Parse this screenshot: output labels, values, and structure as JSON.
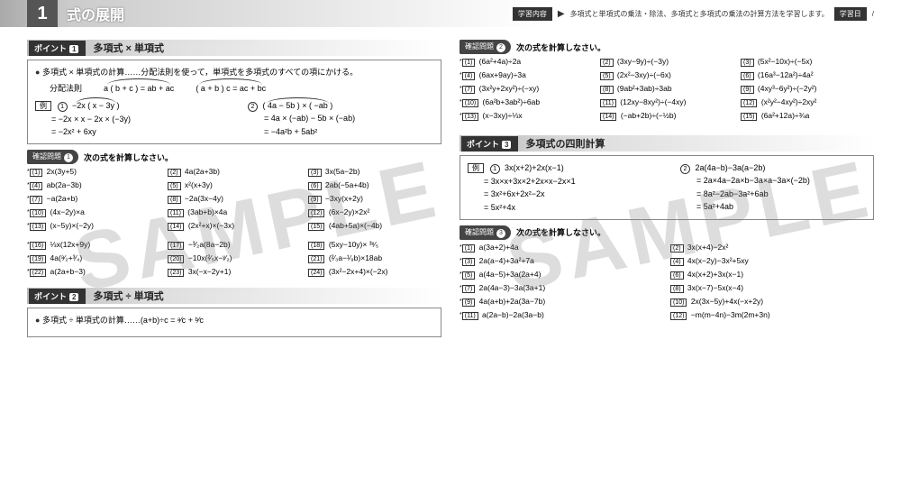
{
  "header": {
    "num": "1",
    "title": "式の展開",
    "tag1": "学習内容",
    "desc": "多項式と単項式の乗法・除法、多項式と多項式の乗法の計算方法を学習します。",
    "tag2": "学習日",
    "slash": "/"
  },
  "watermark": "SAMPLE",
  "pt1": {
    "badge": "ポイント",
    "num": "1",
    "title": "多項式 × 単項式",
    "lead": "多項式 × 単項式の計算……分配法則を使って，単項式を多項式のすべての項にかける。",
    "dist_lbl": "分配法則",
    "dist1": "a ( b + c ) = ab + ac",
    "dist2": "( a + b ) c = ac + bc",
    "ex_lbl": "例",
    "c1": "①",
    "l1a": "−2x ( x − 3y )",
    "l1b": "= −2x × x − 2x × (−3y)",
    "l1c": "= −2x² + 6xy",
    "c2": "②",
    "l2a": "( 4a − 5b ) × ( −ab )",
    "l2b": "= 4a × (−ab) − 5b × (−ab)",
    "l2c": "= −4a²b + 5ab²"
  },
  "cf1": {
    "badge": "確認問題",
    "num": "1",
    "title": "次の式を計算しなさい。",
    "items": [
      {
        "n": "(1)",
        "t": "2x(3y+5)",
        "s": 1
      },
      {
        "n": "(2)",
        "t": "4a(2a+3b)"
      },
      {
        "n": "(3)",
        "t": "3x(5a−2b)"
      },
      {
        "n": "(4)",
        "t": "ab(2a−3b)",
        "s": 1
      },
      {
        "n": "(5)",
        "t": "x²(x+3y)"
      },
      {
        "n": "(6)",
        "t": "2ab(−5a+4b)"
      },
      {
        "n": "(7)",
        "t": "−a(2a+b)",
        "s": 1
      },
      {
        "n": "(8)",
        "t": "−2a(3x−4y)"
      },
      {
        "n": "(9)",
        "t": "−3xy(x+2y)"
      },
      {
        "n": "(10)",
        "t": "(4x−2y)×a",
        "s": 1
      },
      {
        "n": "(11)",
        "t": "(3ab+b)×4a"
      },
      {
        "n": "(12)",
        "t": "(6x−2y)×2x²"
      },
      {
        "n": "(13)",
        "t": "(x−5y)×(−2y)",
        "s": 1
      },
      {
        "n": "(14)",
        "t": "(2x²+x)×(−3x)"
      },
      {
        "n": "(15)",
        "t": "(4ab+5a)×(−4b)"
      }
    ]
  },
  "cf1b": [
    {
      "n": "(16)",
      "t": "⅓x(12x+9y)",
      "s": 1
    },
    {
      "n": "(17)",
      "t": "−³⁄₂a(8a−2b)"
    },
    {
      "n": "(18)",
      "t": "(5xy−10y)× ³ˣ⁄₅"
    },
    {
      "n": "(19)",
      "t": "4a(ᵃ⁄₂+³⁄₄)",
      "s": 1
    },
    {
      "n": "(20)",
      "t": "−10x(²⁄₅x−ʸ⁄₂)"
    },
    {
      "n": "(21)",
      "t": "(²⁄₃a−¹⁄₉b)×18ab"
    },
    {
      "n": "(22)",
      "t": "a(2a+b−3)",
      "s": 1
    },
    {
      "n": "(23)",
      "t": "3x(−x−2y+1)"
    },
    {
      "n": "(24)",
      "t": "(3x²−2x+4)×(−2x)"
    }
  ],
  "pt2": {
    "badge": "ポイント",
    "num": "2",
    "title": "多項式 ÷ 単項式",
    "lead": "多項式 ÷ 単項式の計算……(a+b)÷c = ᵃ⁄c + ᵇ⁄c"
  },
  "cf2": {
    "badge": "確認問題",
    "num": "2",
    "title": "次の式を計算しなさい。",
    "items": [
      {
        "n": "(1)",
        "t": "(6a²+4a)÷2a",
        "s": 1
      },
      {
        "n": "(2)",
        "t": "(3xy−9y)÷(−3y)"
      },
      {
        "n": "(3)",
        "t": "(5x²−10x)÷(−5x)"
      },
      {
        "n": "(4)",
        "t": "(6ax+9ay)÷3a",
        "s": 1
      },
      {
        "n": "(5)",
        "t": "(2x²−3xy)÷(−6x)"
      },
      {
        "n": "(6)",
        "t": "(16a³−12a²)÷4a²"
      },
      {
        "n": "(7)",
        "t": "(3x²y+2xy²)÷(−xy)",
        "s": 1
      },
      {
        "n": "(8)",
        "t": "(9ab²+3ab)÷3ab"
      },
      {
        "n": "(9)",
        "t": "(4xy³−6y²)÷(−2y²)"
      },
      {
        "n": "(10)",
        "t": "(6a²b+3ab²)÷6ab",
        "s": 1
      },
      {
        "n": "(11)",
        "t": "(12xy−8xy²)÷(−4xy)"
      },
      {
        "n": "(12)",
        "t": "(x²y²−4xy²)÷2xy²"
      },
      {
        "n": "(13)",
        "t": "(x−3xy)÷⅓x",
        "s": 1
      },
      {
        "n": "(14)",
        "t": "(−ab+2b)÷(−½b)"
      },
      {
        "n": "(15)",
        "t": "(6a²+12a)÷¾a"
      }
    ]
  },
  "pt3": {
    "badge": "ポイント",
    "num": "3",
    "title": "多項式の四則計算",
    "ex_lbl": "例",
    "c1": "①",
    "l1a": "3x(x+2)+2x(x−1)",
    "l1b": "= 3x×x+3x×2+2x×x−2x×1",
    "l1c": "= 3x²+6x+2x²−2x",
    "l1d": "= 5x²+4x",
    "c2": "②",
    "l2a": "2a(4a−b)−3a(a−2b)",
    "l2b": "= 2a×4a−2a×b−3a×a−3a×(−2b)",
    "l2c": "= 8a²−2ab−3a²+6ab",
    "l2d": "= 5a²+4ab"
  },
  "cf3": {
    "badge": "確認問題",
    "num": "3",
    "title": "次の式を計算しなさい。",
    "items": [
      {
        "n": "(1)",
        "t": "a(3a+2)+4a",
        "s": 1
      },
      {
        "n": "(2)",
        "t": "3x(x+4)−2x²"
      },
      {
        "n": "(3)",
        "t": "2a(a−4)+3a²+7a",
        "s": 1
      },
      {
        "n": "(4)",
        "t": "4x(x−2y)−3x²+5xy"
      },
      {
        "n": "(5)",
        "t": "a(4a−5)+3a(2a+4)",
        "s": 1
      },
      {
        "n": "(6)",
        "t": "4x(x+2)+3x(x−1)"
      },
      {
        "n": "(7)",
        "t": "2a(4a−3)−3a(3a+1)",
        "s": 1
      },
      {
        "n": "(8)",
        "t": "3x(x−7)−5x(x−4)"
      },
      {
        "n": "(9)",
        "t": "4a(a+b)+2a(3a−7b)",
        "s": 1
      },
      {
        "n": "(10)",
        "t": "2x(3x−5y)+4x(−x+2y)"
      },
      {
        "n": "(11)",
        "t": "a(2a−b)−2a(3a−b)",
        "s": 1
      },
      {
        "n": "(12)",
        "t": "−m(m−4n)−3m(2m+3n)"
      }
    ]
  }
}
